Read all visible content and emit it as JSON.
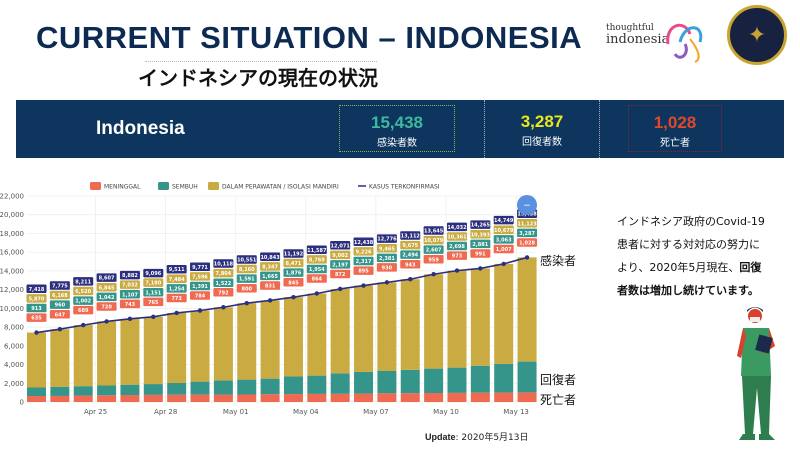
{
  "header": {
    "title": "CURRENT SITUATION – INDONESIA",
    "subtitle": "インドネシアの現在の状況",
    "logo_text_top": "thoughtful",
    "logo_text_bottom": "indonesia"
  },
  "summary": {
    "country": "Indonesia",
    "stats": [
      {
        "value": "15,438",
        "label": "感染者数",
        "color": "#3fb8a0"
      },
      {
        "value": "3,287",
        "label": "回復者数",
        "color": "#e8e81c"
      },
      {
        "value": "1,028",
        "label": "死亡者",
        "color": "#e2472b"
      }
    ]
  },
  "chart_data": {
    "type": "bar",
    "stacked": true,
    "legend": [
      "MENINGGAL",
      "SEMBUH",
      "DALAM PERAWATAN / ISOLASI MANDIRI",
      "KASUS TERKONFIRMASI"
    ],
    "legend_position": "top",
    "colors": {
      "deaths": "#ef6a50",
      "recovered": "#36958b",
      "active": "#c9ab42",
      "confirmed": "#2b2f7e"
    },
    "categories": [
      "Apr 22",
      "Apr 23",
      "Apr 24",
      "Apr 25",
      "Apr 26",
      "Apr 27",
      "Apr 28",
      "Apr 29",
      "Apr 30",
      "May 01",
      "May 02",
      "May 03",
      "May 04",
      "May 05",
      "May 06",
      "May 07",
      "May 08",
      "May 09",
      "May 10",
      "May 11",
      "May 12",
      "May 13"
    ],
    "x_tick_labels": [
      "Apr 25",
      "Apr 28",
      "May 01",
      "May 04",
      "May 07",
      "May 10",
      "May 13"
    ],
    "y_tick_labels": [
      "0",
      "2,000",
      "4,000",
      "6,000",
      "8,000",
      "10,000",
      "12,000",
      "14,000",
      "16,000",
      "18,000",
      "20,000",
      "22,000"
    ],
    "ylim": [
      0,
      22000
    ],
    "grid": true,
    "series": [
      {
        "name": "MENINGGAL",
        "values": [
          635,
          647,
          689,
          720,
          743,
          765,
          773,
          784,
          792,
          800,
          831,
          845,
          864,
          872,
          895,
          930,
          943,
          959,
          973,
          991,
          1007,
          1028
        ]
      },
      {
        "name": "SEMBUH",
        "values": [
          913,
          960,
          1002,
          1042,
          1107,
          1151,
          1254,
          1391,
          1522,
          1591,
          1665,
          1876,
          1954,
          2197,
          2317,
          2381,
          2494,
          2607,
          2698,
          2881,
          3063,
          3287
        ]
      },
      {
        "name": "DALAM PERAWATAN / ISOLASI MANDIRI",
        "values": [
          5870,
          6168,
          6520,
          6845,
          7032,
          7180,
          7484,
          7596,
          7804,
          8160,
          8347,
          8471,
          8769,
          9002,
          9226,
          9465,
          9675,
          10079,
          10361,
          10393,
          10679,
          11123
        ]
      },
      {
        "name": "KASUS TERKONFIRMASI",
        "type": "line",
        "values": [
          7418,
          7775,
          8211,
          8607,
          8882,
          9096,
          9511,
          9771,
          10118,
          10551,
          10843,
          11192,
          11587,
          12071,
          12438,
          12776,
          13112,
          13645,
          14032,
          14265,
          14749,
          15438
        ]
      }
    ],
    "zoom_button": "−"
  },
  "side_labels": {
    "confirmed": "感染者",
    "recovered": "回復者",
    "deaths": "死亡者"
  },
  "note": {
    "text1": "インドネシア政府のCovid-19患者に対する対対応の努力により、2020年5月現在、",
    "bold": "回復者数は増加し続けています。"
  },
  "update": {
    "label": "Update",
    "value": ": 2020年5月13日"
  }
}
